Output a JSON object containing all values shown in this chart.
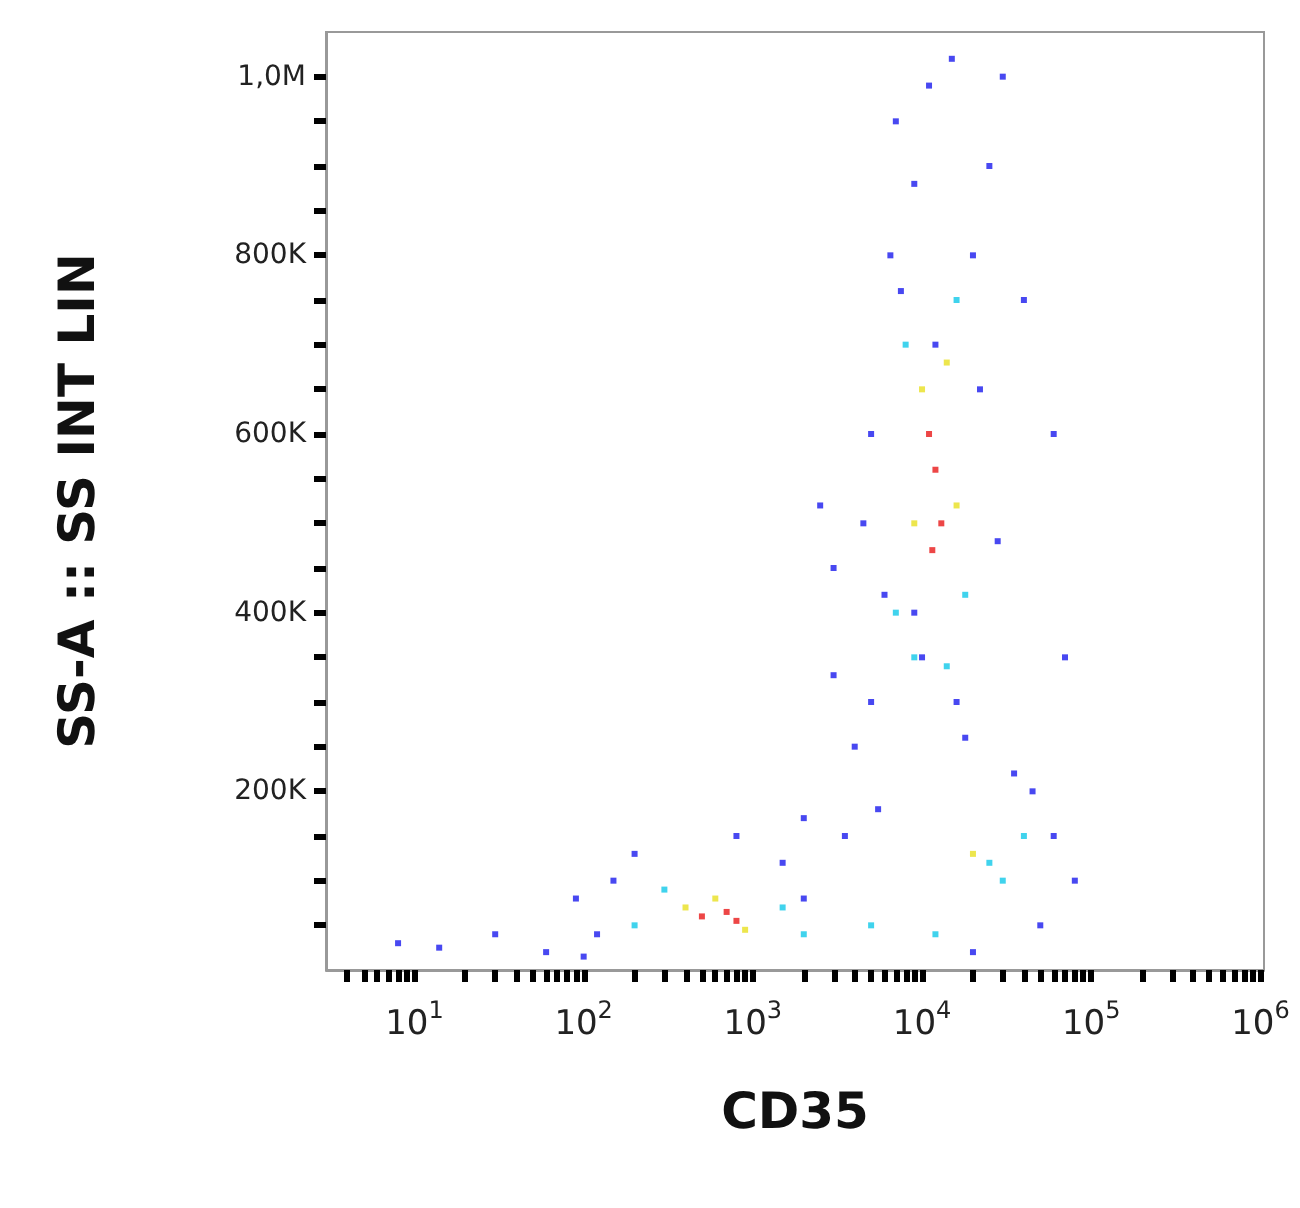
{
  "chart_data": {
    "type": "scatter",
    "xlabel": "CD35",
    "ylabel": "SS-A :: SS INT LIN",
    "log": "x",
    "marker": "square",
    "xlim": [
      3,
      1050000
    ],
    "ylim": [
      0,
      1050000
    ],
    "xticks": [
      {
        "value": 4,
        "label": null
      },
      {
        "value": 5,
        "label": null
      },
      {
        "value": 6,
        "label": null
      },
      {
        "value": 7,
        "label": null
      },
      {
        "value": 8,
        "label": null
      },
      {
        "value": 9,
        "label": null
      },
      {
        "value": 10,
        "label": "10$^{1}$"
      },
      {
        "value": 20,
        "label": null
      },
      {
        "value": 30,
        "label": null
      },
      {
        "value": 40,
        "label": null
      },
      {
        "value": 50,
        "label": null
      },
      {
        "value": 60,
        "label": null
      },
      {
        "value": 70,
        "label": null
      },
      {
        "value": 80,
        "label": null
      },
      {
        "value": 90,
        "label": null
      },
      {
        "value": 100,
        "label": "10$^{2}$"
      },
      {
        "value": 200,
        "label": null
      },
      {
        "value": 300,
        "label": null
      },
      {
        "value": 400,
        "label": null
      },
      {
        "value": 500,
        "label": null
      },
      {
        "value": 600,
        "label": null
      },
      {
        "value": 700,
        "label": null
      },
      {
        "value": 800,
        "label": null
      },
      {
        "value": 900,
        "label": null
      },
      {
        "value": 1000,
        "label": "10$^{3}$"
      },
      {
        "value": 2000,
        "label": null
      },
      {
        "value": 3000,
        "label": null
      },
      {
        "value": 4000,
        "label": null
      },
      {
        "value": 5000,
        "label": null
      },
      {
        "value": 6000,
        "label": null
      },
      {
        "value": 7000,
        "label": null
      },
      {
        "value": 8000,
        "label": null
      },
      {
        "value": 9000,
        "label": null
      },
      {
        "value": 10000,
        "label": "10$^{4}$"
      },
      {
        "value": 20000,
        "label": null
      },
      {
        "value": 30000,
        "label": null
      },
      {
        "value": 40000,
        "label": null
      },
      {
        "value": 50000,
        "label": null
      },
      {
        "value": 60000,
        "label": null
      },
      {
        "value": 70000,
        "label": null
      },
      {
        "value": 80000,
        "label": null
      },
      {
        "value": 90000,
        "label": null
      },
      {
        "value": 100000,
        "label": "10$^{5}$"
      },
      {
        "value": 200000,
        "label": null
      },
      {
        "value": 300000,
        "label": null
      },
      {
        "value": 400000,
        "label": null
      },
      {
        "value": 500000,
        "label": null
      },
      {
        "value": 600000,
        "label": null
      },
      {
        "value": 700000,
        "label": null
      },
      {
        "value": 800000,
        "label": null
      },
      {
        "value": 900000,
        "label": null
      },
      {
        "value": 1000000,
        "label": "10$^{6}$"
      }
    ],
    "yticks": [
      {
        "value": 50000,
        "label": null
      },
      {
        "value": 100000,
        "label": null
      },
      {
        "value": 150000,
        "label": null
      },
      {
        "value": 200000,
        "label": "200K"
      },
      {
        "value": 250000,
        "label": null
      },
      {
        "value": 300000,
        "label": null
      },
      {
        "value": 350000,
        "label": null
      },
      {
        "value": 400000,
        "label": "400K"
      },
      {
        "value": 450000,
        "label": null
      },
      {
        "value": 500000,
        "label": null
      },
      {
        "value": 550000,
        "label": null
      },
      {
        "value": 600000,
        "label": "600K"
      },
      {
        "value": 650000,
        "label": null
      },
      {
        "value": 700000,
        "label": null
      },
      {
        "value": 750000,
        "label": null
      },
      {
        "value": 800000,
        "label": "800K"
      },
      {
        "value": 850000,
        "label": null
      },
      {
        "value": 900000,
        "label": null
      },
      {
        "value": 950000,
        "label": null
      },
      {
        "value": 1000000,
        "label": "1,0M"
      }
    ],
    "series": [
      {
        "color": "#1a1aee",
        "x": [
          8,
          14,
          30,
          60,
          90,
          150,
          2000,
          4000,
          3000,
          6000,
          2500,
          5000,
          20000,
          40000,
          60000,
          70000,
          45000,
          30000,
          7000,
          9000,
          15000,
          25000,
          12000,
          7500,
          5000,
          3500,
          2000,
          1500,
          800,
          200,
          120,
          100,
          5500,
          18000,
          35000,
          60000,
          80000,
          50000,
          6500,
          11000,
          22000,
          28000,
          16000,
          10000,
          4500,
          3000,
          9000,
          20000
        ],
        "values": [
          30000,
          25000,
          40000,
          20000,
          80000,
          100000,
          170000,
          250000,
          330000,
          420000,
          520000,
          600000,
          800000,
          750000,
          600000,
          350000,
          200000,
          1000000,
          950000,
          880000,
          1020000,
          900000,
          700000,
          760000,
          300000,
          150000,
          80000,
          120000,
          150000,
          130000,
          40000,
          15000,
          180000,
          260000,
          220000,
          150000,
          100000,
          50000,
          800000,
          990000,
          650000,
          480000,
          300000,
          350000,
          500000,
          450000,
          400000,
          20000
        ]
      },
      {
        "color": "#10c8e8",
        "x": [
          7000,
          18000,
          8000,
          16000,
          9000,
          14000,
          200,
          1500,
          300,
          2000,
          25000,
          40000,
          30000,
          5000,
          12000
        ],
        "values": [
          400000,
          420000,
          700000,
          750000,
          350000,
          340000,
          50000,
          70000,
          90000,
          40000,
          120000,
          150000,
          100000,
          50000,
          40000
        ]
      },
      {
        "color": "#e8e020",
        "x": [
          9000,
          16000,
          10000,
          14000,
          400,
          900,
          600,
          20000
        ],
        "values": [
          500000,
          520000,
          650000,
          680000,
          70000,
          45000,
          80000,
          130000
        ]
      },
      {
        "color": "#e81818",
        "x": [
          12000,
          11000,
          13000,
          11500,
          500,
          800,
          700
        ],
        "values": [
          560000,
          600000,
          500000,
          470000,
          60000,
          55000,
          65000
        ]
      }
    ]
  }
}
